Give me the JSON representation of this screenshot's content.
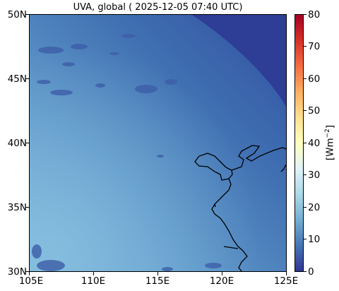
{
  "title": "UVA, global ( 2025-12-05 07:40 UTC)",
  "x_ticks": [
    "105E",
    "110E",
    "115E",
    "120E",
    "125E"
  ],
  "y_ticks": [
    "50N",
    "45N",
    "40N",
    "35N",
    "30N"
  ],
  "colorbar": {
    "label_prefix": "[Wm",
    "label_exp": "−2",
    "label_suffix": "]",
    "ticks": [
      "80",
      "70",
      "60",
      "50",
      "40",
      "30",
      "20",
      "10",
      "0"
    ],
    "range": [
      0,
      80
    ],
    "colormap": "RdYlBu_r",
    "stops": [
      "#313695",
      "#4575b4",
      "#74add1",
      "#abd9e9",
      "#e0f3f8",
      "#ffffbf",
      "#fee090",
      "#fdae61",
      "#f46d43",
      "#d73027",
      "#a50026"
    ]
  },
  "map": {
    "lon_range": [
      105,
      125
    ],
    "lat_range": [
      30,
      50
    ],
    "field_colors": {
      "dark": "#2f3f99",
      "mid": "#3a63a8",
      "light": "#6da8d2"
    }
  }
}
